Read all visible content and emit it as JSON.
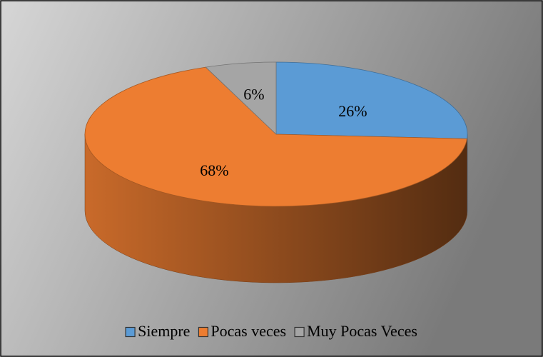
{
  "chart_data": {
    "type": "pie",
    "categories": [
      "Siempre",
      "Pocas veces",
      "Muy Pocas Veces"
    ],
    "values": [
      26,
      68,
      6
    ],
    "value_labels": [
      "26%",
      "68%",
      "6%"
    ],
    "colors": [
      "#5b9bd5",
      "#ed7d31",
      "#a5a5a5"
    ],
    "legend": "bottom"
  }
}
